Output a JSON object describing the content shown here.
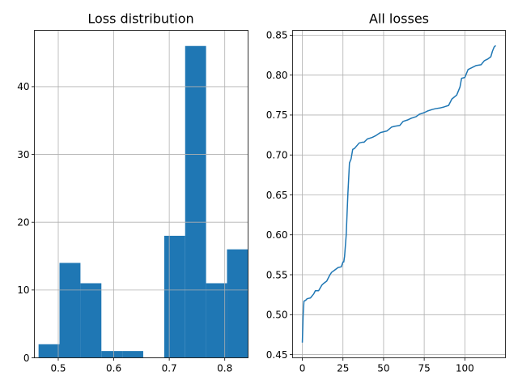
{
  "chart_data": [
    {
      "type": "bar",
      "title": "Loss distribution",
      "xlabel": "",
      "ylabel": "",
      "grid": true,
      "color": "#1f77b4",
      "xlim": [
        0.457,
        0.842
      ],
      "ylim": [
        0,
        48.3
      ],
      "xticks": [
        0.5,
        0.6,
        0.7,
        0.8
      ],
      "xtick_labels": [
        "0.5",
        "0.6",
        "0.7",
        "0.8"
      ],
      "yticks": [
        0,
        10,
        20,
        30,
        40
      ],
      "ytick_labels": [
        "0",
        "10",
        "20",
        "30",
        "40"
      ],
      "bin_edges": [
        0.4645,
        0.5022,
        0.54,
        0.5777,
        0.6154,
        0.6531,
        0.6909,
        0.7286,
        0.7663,
        0.804,
        0.8418
      ],
      "values": [
        2,
        14,
        11,
        1,
        1,
        0,
        18,
        46,
        11,
        16
      ]
    },
    {
      "type": "line",
      "title": "All losses",
      "xlabel": "",
      "ylabel": "",
      "grid": true,
      "color": "#1f77b4",
      "xlim": [
        -6,
        125
      ],
      "ylim": [
        0.446,
        0.856
      ],
      "xticks": [
        0,
        25,
        50,
        75,
        100
      ],
      "xtick_labels": [
        "0",
        "25",
        "50",
        "75",
        "100"
      ],
      "yticks": [
        0.45,
        0.5,
        0.55,
        0.6,
        0.65,
        0.7,
        0.75,
        0.8,
        0.85
      ],
      "ytick_labels": [
        "0.45",
        "0.50",
        "0.55",
        "0.60",
        "0.65",
        "0.70",
        "0.75",
        "0.80",
        "0.85"
      ],
      "x": [
        0,
        0.5,
        1,
        2,
        3,
        5,
        7,
        8,
        10,
        12,
        13,
        15,
        17,
        18,
        20,
        22,
        24,
        25,
        25.5,
        26,
        27,
        28,
        29,
        30,
        31,
        32,
        35,
        37,
        38,
        40,
        43,
        45,
        48,
        50,
        52,
        55,
        57,
        60,
        62,
        65,
        67,
        70,
        72,
        75,
        77,
        80,
        82,
        85,
        87,
        90,
        92,
        95,
        97,
        98,
        100,
        102,
        104,
        107,
        110,
        112,
        114,
        116,
        117,
        118,
        119
      ],
      "y": [
        0.465,
        0.5,
        0.517,
        0.518,
        0.52,
        0.521,
        0.526,
        0.53,
        0.53,
        0.537,
        0.539,
        0.542,
        0.55,
        0.553,
        0.556,
        0.559,
        0.56,
        0.566,
        0.566,
        0.573,
        0.6,
        0.65,
        0.69,
        0.695,
        0.707,
        0.708,
        0.715,
        0.716,
        0.716,
        0.72,
        0.722,
        0.724,
        0.728,
        0.729,
        0.73,
        0.735,
        0.736,
        0.737,
        0.742,
        0.744,
        0.746,
        0.748,
        0.751,
        0.753,
        0.755,
        0.757,
        0.758,
        0.759,
        0.76,
        0.762,
        0.77,
        0.775,
        0.785,
        0.796,
        0.797,
        0.807,
        0.809,
        0.812,
        0.813,
        0.818,
        0.82,
        0.823,
        0.83,
        0.835,
        0.837
      ]
    }
  ]
}
